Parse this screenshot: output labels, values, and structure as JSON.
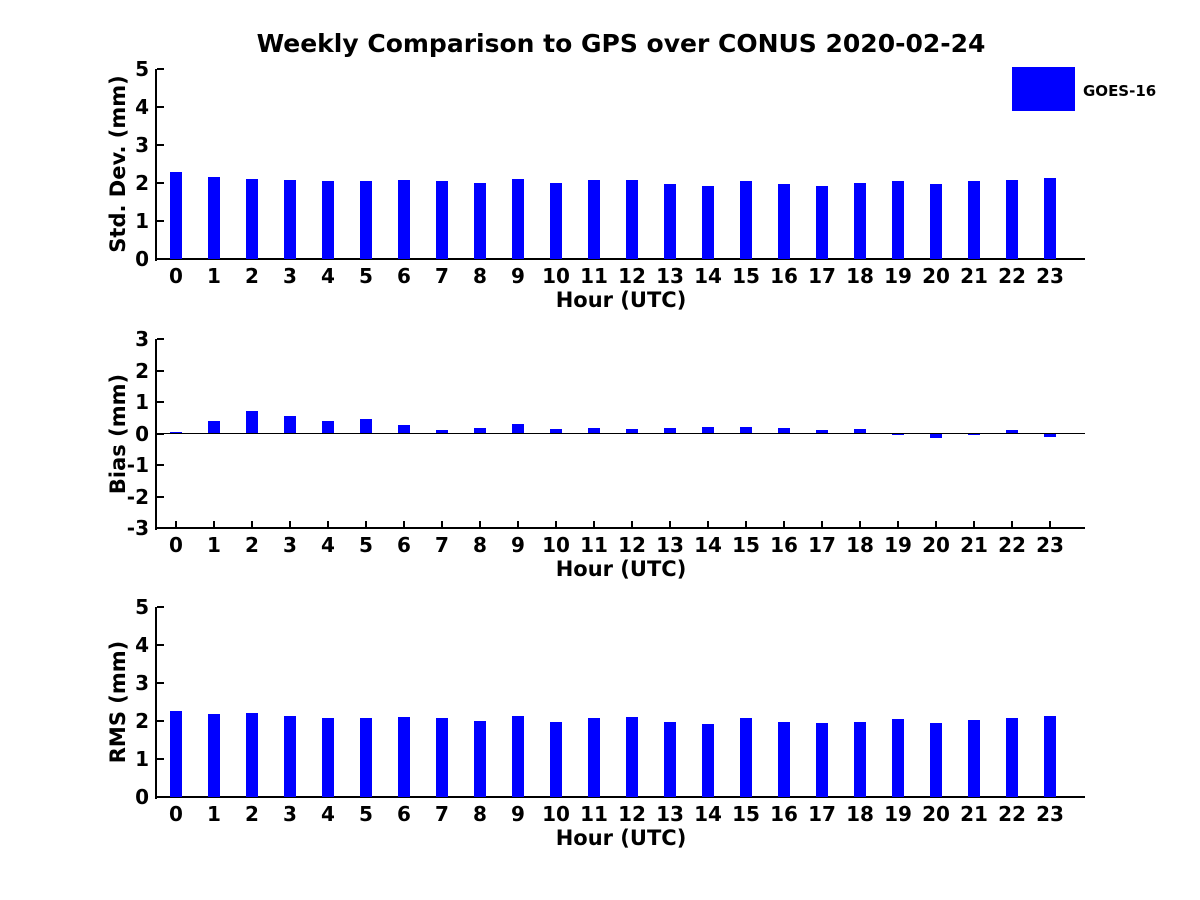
{
  "title": "Weekly Comparison to GPS over CONUS 2020-02-24",
  "legend": {
    "label": "GOES-16",
    "color": "#0000ff",
    "position": "upper right"
  },
  "colors": {
    "bar": "#0000ff",
    "axis": "#000000",
    "background": "#ffffff"
  },
  "chart_data": [
    {
      "type": "bar",
      "id": "std-dev",
      "series_name": "GOES-16",
      "ylabel": "Std. Dev. (mm)",
      "xlabel": "Hour (UTC)",
      "categories": [
        "0",
        "1",
        "2",
        "3",
        "4",
        "5",
        "6",
        "7",
        "8",
        "9",
        "10",
        "11",
        "12",
        "13",
        "14",
        "15",
        "16",
        "17",
        "18",
        "19",
        "20",
        "21",
        "22",
        "23"
      ],
      "values": [
        2.28,
        2.15,
        2.1,
        2.07,
        2.06,
        2.04,
        2.09,
        2.06,
        2.01,
        2.1,
        1.99,
        2.09,
        2.09,
        1.97,
        1.93,
        2.06,
        1.97,
        1.93,
        2.0,
        2.04,
        1.97,
        2.04,
        2.09,
        2.13
      ],
      "ylim": [
        0,
        5
      ],
      "yticks": [
        0,
        1,
        2,
        3,
        4,
        5
      ],
      "grid": false,
      "zero_line": false
    },
    {
      "type": "bar",
      "id": "bias",
      "series_name": "GOES-16",
      "ylabel": "Bias (mm)",
      "xlabel": "Hour (UTC)",
      "categories": [
        "0",
        "1",
        "2",
        "3",
        "4",
        "5",
        "6",
        "7",
        "8",
        "9",
        "10",
        "11",
        "12",
        "13",
        "14",
        "15",
        "16",
        "17",
        "18",
        "19",
        "20",
        "21",
        "22",
        "23"
      ],
      "values": [
        0.05,
        0.4,
        0.7,
        0.55,
        0.4,
        0.45,
        0.27,
        0.12,
        0.18,
        0.3,
        0.15,
        0.18,
        0.13,
        0.17,
        0.22,
        0.2,
        0.17,
        0.1,
        0.14,
        -0.03,
        -0.15,
        -0.03,
        0.1,
        -0.12
      ],
      "ylim": [
        -3,
        3
      ],
      "yticks": [
        -3,
        -2,
        -1,
        0,
        1,
        2,
        3
      ],
      "grid": false,
      "zero_line": true
    },
    {
      "type": "bar",
      "id": "rms",
      "series_name": "GOES-16",
      "ylabel": "RMS (mm)",
      "xlabel": "Hour (UTC)",
      "categories": [
        "0",
        "1",
        "2",
        "3",
        "4",
        "5",
        "6",
        "7",
        "8",
        "9",
        "10",
        "11",
        "12",
        "13",
        "14",
        "15",
        "16",
        "17",
        "18",
        "19",
        "20",
        "21",
        "22",
        "23"
      ],
      "values": [
        2.27,
        2.19,
        2.21,
        2.14,
        2.08,
        2.08,
        2.11,
        2.08,
        2.01,
        2.13,
        1.98,
        2.08,
        2.1,
        1.98,
        1.93,
        2.07,
        1.97,
        1.94,
        1.98,
        2.06,
        1.96,
        2.02,
        2.07,
        2.12
      ],
      "ylim": [
        0,
        5
      ],
      "yticks": [
        0,
        1,
        2,
        3,
        4,
        5
      ],
      "grid": false,
      "zero_line": false
    }
  ]
}
